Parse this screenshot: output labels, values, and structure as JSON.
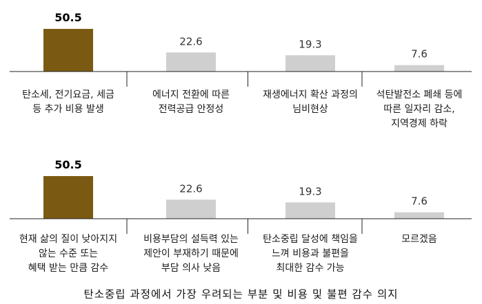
{
  "chart_data": [
    {
      "type": "bar",
      "categories": [
        [
          "탄소세, 전기요금, 세금",
          "등 추가 비용 발생"
        ],
        [
          "에너지 전환에 따른",
          "전력공급 안정성"
        ],
        [
          "재생에너지 확산 과정의",
          "님비현상"
        ],
        [
          "석탄발전소 폐쇄 등에",
          "따른 일자리 감소,",
          "지역경제 하락"
        ]
      ],
      "values": [
        50.5,
        22.6,
        19.3,
        7.6
      ],
      "value_labels": [
        "50.5",
        "22.6",
        "19.3",
        "7.6"
      ],
      "highlight_index": 0,
      "ylim": [
        0,
        50.5
      ]
    },
    {
      "type": "bar",
      "categories": [
        [
          "현재 삶의 질이 낮아지지",
          "않는 수준 또는",
          "혜택 받는 만큼 감수"
        ],
        [
          "비용부담의 설득력 있는",
          "제안이 부재하기 때문에",
          "부담 의사 낮음"
        ],
        [
          "탄소중립 달성에 책임을",
          "느껴 비용과 불편을",
          "최대한 감수 가능"
        ],
        [
          "모르겠음"
        ]
      ],
      "values": [
        50.5,
        22.6,
        19.3,
        7.6
      ],
      "value_labels": [
        "50.5",
        "22.6",
        "19.3",
        "7.6"
      ],
      "highlight_index": 0,
      "ylim": [
        0,
        50.5
      ]
    }
  ],
  "colors": {
    "highlight_bar": "#7a5a12",
    "normal_bar": "#cfcfcf",
    "axis_line": "#222222"
  },
  "caption": "탄소중립 과정에서 가장 우려되는 부분 및 비용 및 불편 감수 의지"
}
